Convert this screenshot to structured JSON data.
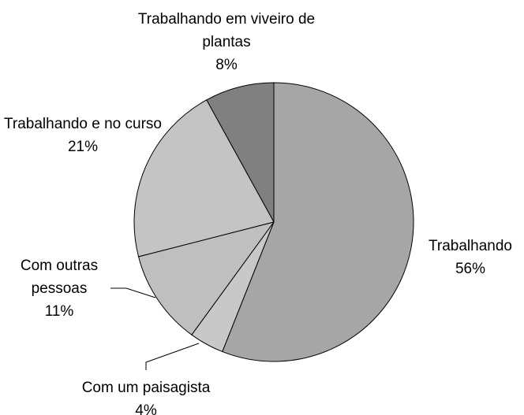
{
  "chart_data": {
    "type": "pie",
    "categories": [
      "Trabalhando",
      "Com um paisagista",
      "Com outras pessoas",
      "Trabalhando e no curso",
      "Trabalhando em viveiro de plantas"
    ],
    "values": [
      56,
      4,
      11,
      21,
      8
    ],
    "value_labels": [
      "56%",
      "4%",
      "11%",
      "21%",
      "8%"
    ],
    "colors": [
      "#a6a6a6",
      "#c8c8c8",
      "#bfbfbf",
      "#c4c4c4",
      "#808080"
    ]
  }
}
